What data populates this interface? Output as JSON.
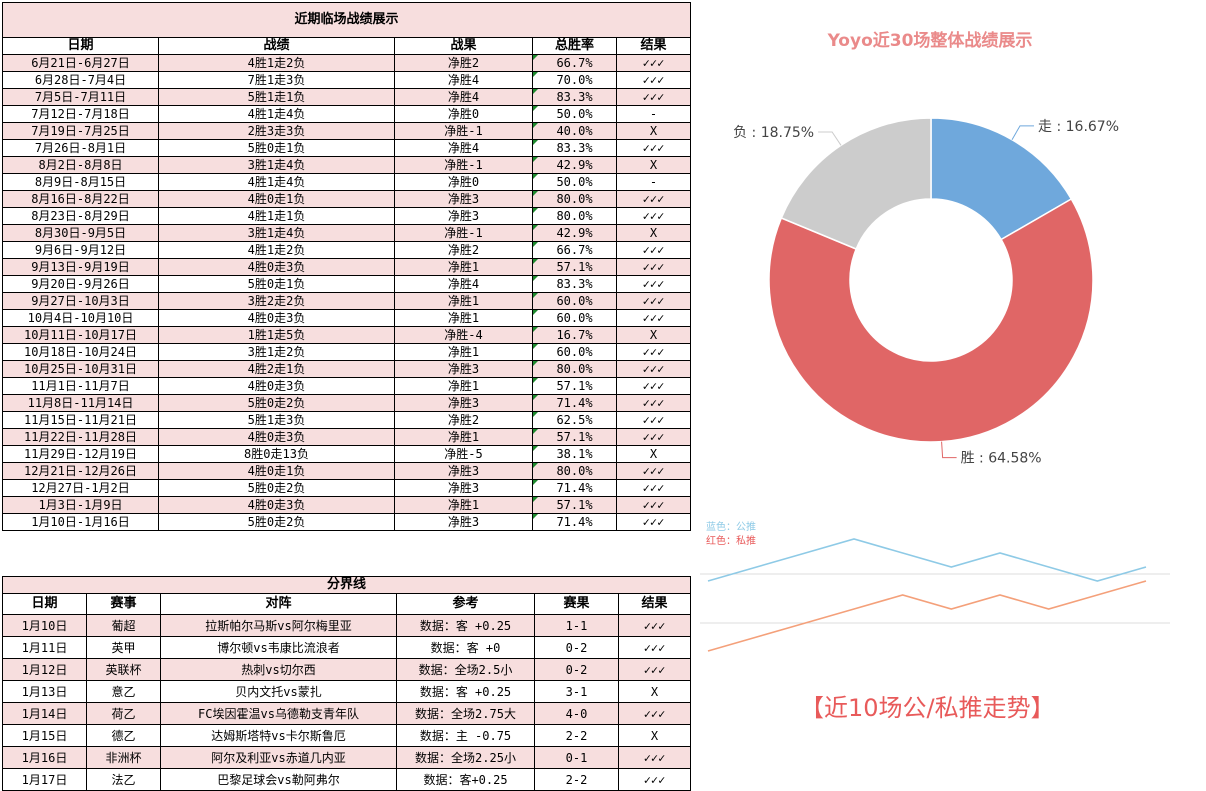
{
  "top_table": {
    "title": "近期临场战绩展示",
    "headers": [
      "日期",
      "战绩",
      "战果",
      "总胜率",
      "结果"
    ],
    "rows": [
      [
        "6月21日-6月27日",
        "4胜1走2负",
        "净胜2",
        "66.7%",
        "✓✓✓"
      ],
      [
        "6月28日-7月4日",
        "7胜1走3负",
        "净胜4",
        "70.0%",
        "✓✓✓"
      ],
      [
        "7月5日-7月11日",
        "5胜1走1负",
        "净胜4",
        "83.3%",
        "✓✓✓"
      ],
      [
        "7月12日-7月18日",
        "4胜1走4负",
        "净胜0",
        "50.0%",
        "-"
      ],
      [
        "7月19日-7月25日",
        "2胜3走3负",
        "净胜-1",
        "40.0%",
        "X"
      ],
      [
        "7月26日-8月1日",
        "5胜0走1负",
        "净胜4",
        "83.3%",
        "✓✓✓"
      ],
      [
        "8月2日-8月8日",
        "3胜1走4负",
        "净胜-1",
        "42.9%",
        "X"
      ],
      [
        "8月9日-8月15日",
        "4胜1走4负",
        "净胜0",
        "50.0%",
        "-"
      ],
      [
        "8月16日-8月22日",
        "4胜0走1负",
        "净胜3",
        "80.0%",
        "✓✓✓"
      ],
      [
        "8月23日-8月29日",
        "4胜1走1负",
        "净胜3",
        "80.0%",
        "✓✓✓"
      ],
      [
        "8月30日-9月5日",
        "3胜1走4负",
        "净胜-1",
        "42.9%",
        "X"
      ],
      [
        "9月6日-9月12日",
        "4胜1走2负",
        "净胜2",
        "66.7%",
        "✓✓✓"
      ],
      [
        "9月13日-9月19日",
        "4胜0走3负",
        "净胜1",
        "57.1%",
        "✓✓✓"
      ],
      [
        "9月20日-9月26日",
        "5胜0走1负",
        "净胜4",
        "83.3%",
        "✓✓✓"
      ],
      [
        "9月27日-10月3日",
        "3胜2走2负",
        "净胜1",
        "60.0%",
        "✓✓✓"
      ],
      [
        "10月4日-10月10日",
        "4胜0走3负",
        "净胜1",
        "60.0%",
        "✓✓✓"
      ],
      [
        "10月11日-10月17日",
        "1胜1走5负",
        "净胜-4",
        "16.7%",
        "X"
      ],
      [
        "10月18日-10月24日",
        "3胜1走2负",
        "净胜1",
        "60.0%",
        "✓✓✓"
      ],
      [
        "10月25日-10月31日",
        "4胜2走1负",
        "净胜3",
        "80.0%",
        "✓✓✓"
      ],
      [
        "11月1日-11月7日",
        "4胜0走3负",
        "净胜1",
        "57.1%",
        "✓✓✓"
      ],
      [
        "11月8日-11月14日",
        "5胜0走2负",
        "净胜3",
        "71.4%",
        "✓✓✓"
      ],
      [
        "11月15日-11月21日",
        "5胜1走3负",
        "净胜2",
        "62.5%",
        "✓✓✓"
      ],
      [
        "11月22日-11月28日",
        "4胜0走3负",
        "净胜1",
        "57.1%",
        "✓✓✓"
      ],
      [
        "11月29日-12月19日",
        "8胜0走13负",
        "净胜-5",
        "38.1%",
        "X"
      ],
      [
        "12月21日-12月26日",
        "4胜0走1负",
        "净胜3",
        "80.0%",
        "✓✓✓"
      ],
      [
        "12月27日-1月2日",
        "5胜0走2负",
        "净胜3",
        "71.4%",
        "✓✓✓"
      ],
      [
        "1月3日-1月9日",
        "4胜0走3负",
        "净胜1",
        "57.1%",
        "✓✓✓"
      ],
      [
        "1月10日-1月16日",
        "5胜0走2负",
        "净胜3",
        "71.4%",
        "✓✓✓"
      ]
    ]
  },
  "divider": "分界线",
  "bottom_table": {
    "headers": [
      "日期",
      "赛事",
      "对阵",
      "参考",
      "赛果",
      "结果"
    ],
    "rows": [
      [
        "1月10日",
        "葡超",
        "拉斯帕尔马斯vs阿尔梅里亚",
        "数据：客 +0.25",
        "1-1",
        "✓✓✓"
      ],
      [
        "1月11日",
        "英甲",
        "博尔顿vs韦康比流浪者",
        "数据：客 +0",
        "0-2",
        "✓✓✓"
      ],
      [
        "1月12日",
        "英联杯",
        "热刺vs切尔西",
        "数据：全场2.5小",
        "0-2",
        "✓✓✓"
      ],
      [
        "1月13日",
        "意乙",
        "贝内文托vs蒙扎",
        "数据：客 +0.25",
        "3-1",
        "X"
      ],
      [
        "1月14日",
        "荷乙",
        "FC埃因霍温vs乌德勒支青年队",
        "数据：全场2.75大",
        "4-0",
        "✓✓✓"
      ],
      [
        "1月15日",
        "德乙",
        "达姆斯塔特vs卡尔斯鲁厄",
        "数据：主 -0.75",
        "2-2",
        "X"
      ],
      [
        "1月16日",
        "非洲杯",
        "阿尔及利亚vs赤道几内亚",
        "数据：全场2.25小",
        "0-1",
        "✓✓✓"
      ],
      [
        "1月17日",
        "法乙",
        "巴黎足球会vs勒阿弗尔",
        "数据：客+0.25",
        "2-2",
        "✓✓✓"
      ]
    ]
  },
  "chart_data": [
    {
      "type": "pie",
      "title": "Yoyo近30场整体战绩展示",
      "slices": [
        {
          "name": "走",
          "value": 16.67,
          "label": "走 : 16.67%",
          "color": "#6fa8dc"
        },
        {
          "name": "胜",
          "value": 64.58,
          "label": "胜 : 64.58%",
          "color": "#e06666"
        },
        {
          "name": "负",
          "value": 18.75,
          "label": "负 : 18.75%",
          "color": "#cccccc"
        }
      ],
      "inner_radius_ratio": 0.5
    },
    {
      "type": "line",
      "title": "【近10场公/私推走势】",
      "legend": [
        "蓝色：公推",
        "红色：私推"
      ],
      "grid": true,
      "series": [
        {
          "name": "公推",
          "color": "#8ecae6",
          "values": [
            6,
            7,
            8,
            9,
            8,
            7,
            8,
            7,
            6,
            7
          ]
        },
        {
          "name": "私推",
          "color": "#f4a07a",
          "values": [
            1,
            2,
            3,
            4,
            5,
            4,
            5,
            4,
            5,
            6
          ]
        }
      ],
      "ylim": [
        0,
        10
      ]
    }
  ]
}
